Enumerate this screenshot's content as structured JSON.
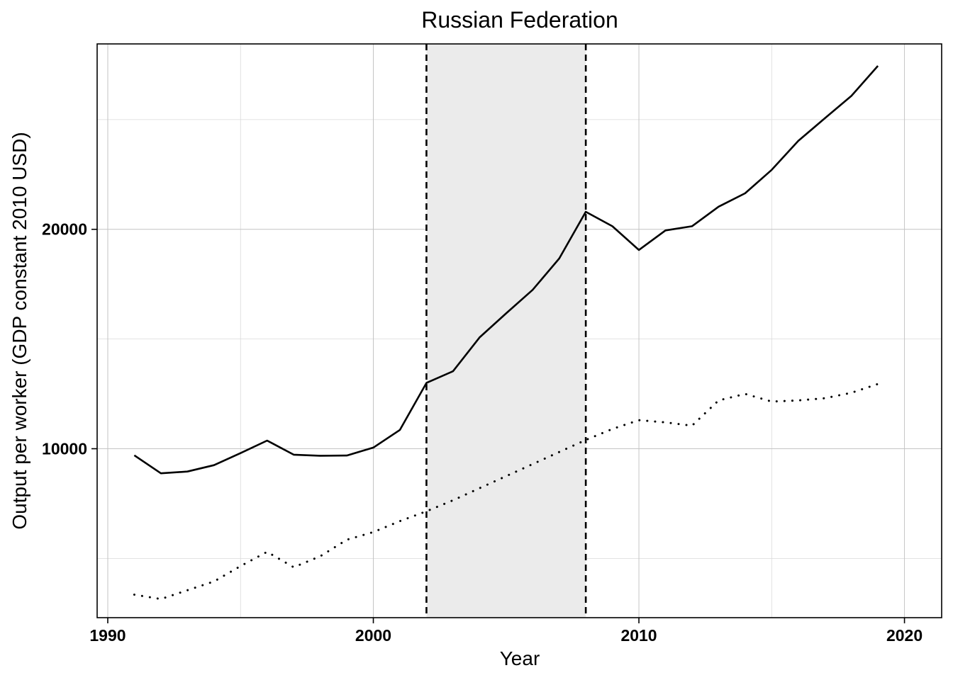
{
  "chart_data": {
    "type": "line",
    "title": "Russian Federation",
    "xlabel": "Year",
    "ylabel": "Output per worker (GDP constant 2010 USD)",
    "xlim": [
      1989.6,
      2021.4
    ],
    "ylim": [
      2300,
      28450
    ],
    "x_ticks": [
      1990,
      2000,
      2010,
      2020
    ],
    "y_ticks": [
      10000,
      20000
    ],
    "x_minor_grid": [
      1995,
      2005,
      2015
    ],
    "y_minor_grid": [
      5000,
      15000,
      25000
    ],
    "grid": true,
    "legend": "none",
    "shaded_region": {
      "x_start": 2002,
      "x_end": 2008,
      "color": "#ebebeb"
    },
    "reference_lines": [
      2002,
      2008
    ],
    "series": [
      {
        "style": "solid",
        "x": [
          1991,
          1992,
          1993,
          1994,
          1995,
          1996,
          1997,
          1998,
          1999,
          2000,
          2001,
          2002,
          2003,
          2004,
          2005,
          2006,
          2007,
          2008,
          2009,
          2010,
          2011,
          2012,
          2013,
          2014,
          2015,
          2016,
          2017,
          2018,
          2019
        ],
        "values": [
          9700,
          8880,
          8960,
          9250,
          9800,
          10370,
          9730,
          9680,
          9690,
          10050,
          10860,
          13000,
          13530,
          15070,
          16170,
          17240,
          18670,
          20800,
          20140,
          19060,
          19950,
          20140,
          21030,
          21640,
          22710,
          24030,
          25060,
          26080,
          27450
        ]
      },
      {
        "style": "dotted",
        "x": [
          1991,
          1992,
          1993,
          1994,
          1995,
          1996,
          1997,
          1998,
          1999,
          2000,
          2001,
          2002,
          2003,
          2004,
          2005,
          2006,
          2007,
          2008,
          2009,
          2010,
          2011,
          2012,
          2013,
          2014,
          2015,
          2016,
          2017,
          2018,
          2019
        ],
        "values": [
          3350,
          3150,
          3550,
          3950,
          4650,
          5300,
          4600,
          5100,
          5850,
          6200,
          6700,
          7150,
          7650,
          8200,
          8750,
          9300,
          9850,
          10400,
          10900,
          11300,
          11200,
          11050,
          12200,
          12500,
          12150,
          12200,
          12300,
          12550,
          12950
        ]
      }
    ]
  }
}
